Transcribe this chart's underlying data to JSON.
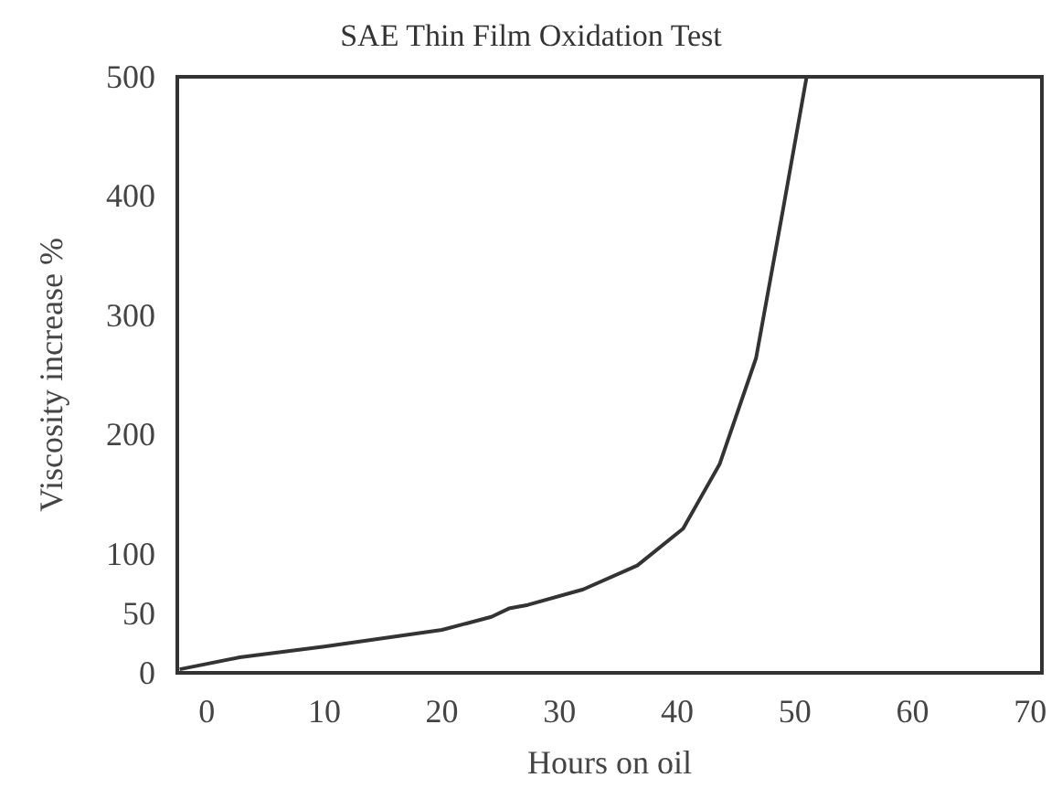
{
  "chart_data": {
    "type": "line",
    "title": "SAE Thin Film Oxidation Test",
    "xlabel": "Hours on oil",
    "ylabel": "Viscosity increase %",
    "x": [
      -2.3,
      2.8,
      10,
      20,
      24.2,
      25.7,
      27.3,
      32,
      36.6,
      40.5,
      43.6,
      46.7,
      49,
      51
    ],
    "series": [
      {
        "color": "#333333",
        "values": [
          3,
          13,
          22,
          36,
          47,
          54,
          57,
          70,
          90,
          121,
          175,
          264,
          389,
          500
        ]
      }
    ],
    "xlim": [
      -2.5,
      71
    ],
    "xticks": [
      0,
      10,
      20,
      30,
      40,
      50,
      60,
      70
    ],
    "ylim": [
      0,
      500
    ],
    "yticks": [
      0,
      50,
      100,
      200,
      300,
      400,
      500
    ],
    "grid": false,
    "marker": "none",
    "line_style": "solid"
  }
}
